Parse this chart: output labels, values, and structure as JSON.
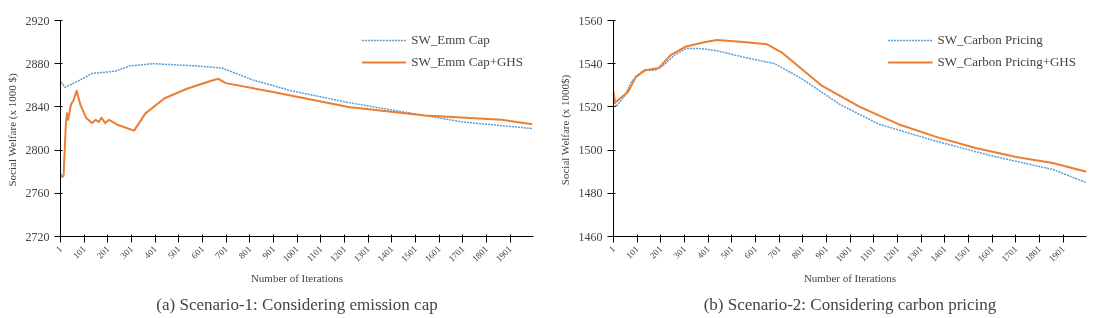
{
  "chart_data": [
    {
      "type": "line",
      "xlabel": "Number of Iterations",
      "ylabel": "Social Welfare  (x 1000 $)",
      "annotations": [
        "(a) Scenario-1: Considering emission cap"
      ],
      "xlim": [
        1,
        2000
      ],
      "ylim": [
        2720,
        2920
      ],
      "xticks": [
        1,
        101,
        201,
        301,
        401,
        501,
        601,
        701,
        801,
        901,
        1001,
        1101,
        1201,
        1301,
        1401,
        1501,
        1601,
        1701,
        1801,
        1901
      ],
      "yticks": [
        2720,
        2760,
        2800,
        2840,
        2880,
        2920
      ],
      "grid": false,
      "legend": "top right",
      "series": [
        {
          "name": "SW_Emm Cap",
          "color": "#5b9bd5",
          "line_style": "dotted",
          "x": [
            4,
            20,
            85,
            134,
            231,
            296,
            393,
            571,
            684,
            813,
            975,
            1218,
            1541,
            1703,
            1995
          ],
          "values": [
            2863,
            2858,
            2865,
            2871,
            2873,
            2878,
            2880,
            2878,
            2876,
            2865,
            2855,
            2844,
            2832,
            2826,
            2820
          ]
        },
        {
          "name": "SW_Emm Cap+GHS",
          "color": "#ed7d31",
          "line_style": "solid",
          "x": [
            1,
            7,
            14,
            24,
            29,
            33,
            45,
            50,
            56,
            69,
            85,
            109,
            134,
            150,
            163,
            174,
            190,
            206,
            247,
            312,
            360,
            441,
            538,
            635,
            668,
            700,
            894,
            1218,
            1541,
            1865,
            1995
          ],
          "values": [
            2778,
            2775,
            2776,
            2826,
            2834,
            2828,
            2842,
            2844,
            2846,
            2855,
            2842,
            2830,
            2825,
            2828,
            2826,
            2830,
            2825,
            2828,
            2823,
            2818,
            2834,
            2848,
            2857,
            2864,
            2866,
            2862,
            2854,
            2840,
            2832,
            2828,
            2824
          ]
        }
      ]
    },
    {
      "type": "line",
      "xlabel": "Number of Iterations",
      "ylabel": "Social Welfare  (x 1000$)",
      "annotations": [
        "(b) Scenario-2: Considering carbon pricing"
      ],
      "xlim": [
        1,
        2000
      ],
      "ylim": [
        1460,
        1560
      ],
      "xticks": [
        1,
        101,
        201,
        301,
        401,
        501,
        601,
        701,
        801,
        901,
        1001,
        1101,
        1201,
        1301,
        1401,
        1501,
        1601,
        1701,
        1801,
        1901
      ],
      "yticks": [
        1460,
        1480,
        1500,
        1520,
        1540,
        1560
      ],
      "grid": false,
      "legend": "top right",
      "series": [
        {
          "name": "SW_Carbon Pricing",
          "color": "#5b9bd5",
          "line_style": "dotted",
          "x": [
            1,
            11,
            47,
            79,
            128,
            177,
            210,
            259,
            308,
            373,
            438,
            552,
            683,
            797,
            960,
            1123,
            1368,
            1613,
            1858,
            1998
          ],
          "values": [
            1525,
            1520,
            1525,
            1532,
            1537,
            1537,
            1539,
            1544,
            1547,
            1547,
            1546,
            1543,
            1540,
            1533,
            1521,
            1512,
            1504,
            1497,
            1491,
            1485
          ]
        },
        {
          "name": "SW_Carbon Pricing+GHS",
          "color": "#ed7d31",
          "line_style": "solid",
          "x": [
            1,
            8,
            30,
            63,
            96,
            136,
            193,
            242,
            308,
            389,
            438,
            552,
            650,
            715,
            879,
            1042,
            1205,
            1368,
            1531,
            1694,
            1857,
            2000
          ],
          "values": [
            1527,
            1522,
            1524,
            1527,
            1534,
            1537,
            1538,
            1544,
            1548,
            1550,
            1551,
            1550,
            1549,
            1545,
            1530,
            1520,
            1512,
            1506,
            1501,
            1497,
            1494,
            1490
          ]
        }
      ]
    }
  ]
}
